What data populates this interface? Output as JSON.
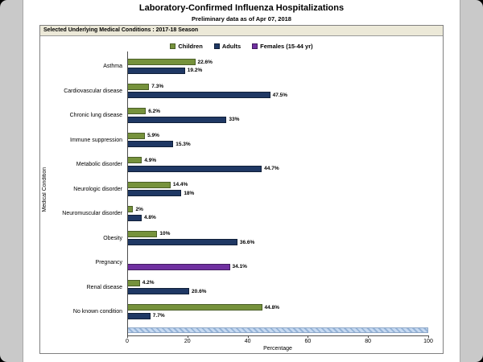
{
  "selection_bar": {
    "label": "Selected Underlying Medical Conditions : 2017-18 Season"
  },
  "chart_data": {
    "type": "bar",
    "orientation": "horizontal",
    "title": "Laboratory-Confirmed Influenza Hospitalizations",
    "subtitle": "Preliminary data as of Apr 07, 2018",
    "xlabel": "Percentage",
    "ylabel": "Medical Condition",
    "xlim": [
      0,
      100
    ],
    "xticks": [
      0,
      20,
      40,
      60,
      80,
      100
    ],
    "legend_position": "top",
    "grid": false,
    "categories": [
      "Asthma",
      "Cardiovascular disease",
      "Chronic lung disease",
      "Immune suppression",
      "Metabolic disorder",
      "Neurologic disorder",
      "Neuromuscular disorder",
      "Obesity",
      "Pregnancy",
      "Renal disease",
      "No known condition"
    ],
    "series": [
      {
        "name": "Children",
        "color": "#76923C",
        "border_color": "#4A5E27",
        "values": [
          22.6,
          7.3,
          6.2,
          5.9,
          4.9,
          14.4,
          2,
          10,
          null,
          4.2,
          44.8
        ],
        "labels": [
          "22.6%",
          "7.3%",
          "6.2%",
          "5.9%",
          "4.9%",
          "14.4%",
          "2%",
          "10%",
          null,
          "4.2%",
          "44.8%"
        ]
      },
      {
        "name": "Adults",
        "color": "#1F3864",
        "border_color": "#101F38",
        "values": [
          19.2,
          47.5,
          33,
          15.3,
          44.7,
          18,
          4.8,
          36.6,
          null,
          20.6,
          7.7
        ],
        "labels": [
          "19.2%",
          "47.5%",
          "33%",
          "15.3%",
          "44.7%",
          "18%",
          "4.8%",
          "36.6%",
          null,
          "20.6%",
          "7.7%"
        ]
      },
      {
        "name": "Females (15-44 yr)",
        "color": "#7030A0",
        "border_color": "#431C60",
        "values": [
          null,
          null,
          null,
          null,
          null,
          null,
          null,
          null,
          34.1,
          null,
          null
        ],
        "labels": [
          null,
          null,
          null,
          null,
          null,
          null,
          null,
          null,
          "34.1%",
          null,
          null
        ]
      }
    ],
    "scrollbar_color": "#C6D9F1"
  }
}
